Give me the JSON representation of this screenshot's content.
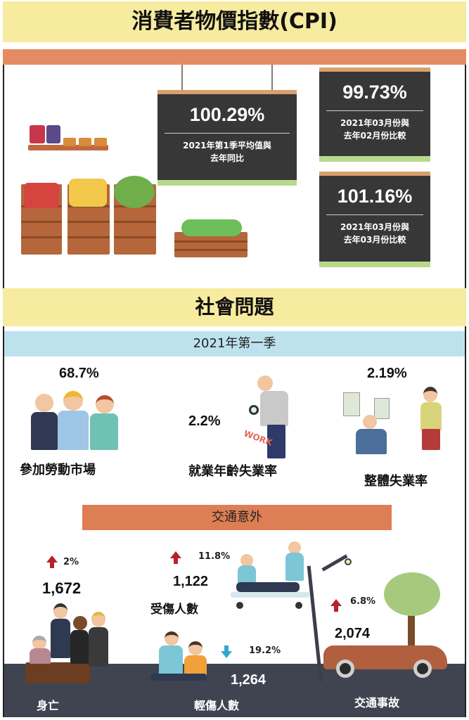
{
  "header": {
    "title": "消費者物價指數(CPI)"
  },
  "cpi_boards": [
    {
      "value": "100.29%",
      "caption": "2021年第1季平均值與\n去年同比"
    },
    {
      "value": "99.73%",
      "caption": "2021年03月份與\n去年02月份比較"
    },
    {
      "value": "101.16%",
      "caption": "2021年03月份與\n去年03月份比較"
    }
  ],
  "social": {
    "title": "社會問題",
    "period": "2021年第一季",
    "labour": {
      "value": "68.7%",
      "label": "參加勞動市場"
    },
    "youth_unemployment": {
      "value": "2.2%",
      "label": "就業年齡失業率",
      "sign_text": "WORK"
    },
    "overall_unemployment": {
      "value": "2.19%",
      "label": "整體失業率"
    }
  },
  "traffic": {
    "title": "交通意外",
    "deaths": {
      "value": "1,672",
      "change": "2%",
      "direction": "up",
      "label": "身亡"
    },
    "injured": {
      "value": "1,122",
      "change": "11.8%",
      "direction": "up",
      "label": "受傷人數"
    },
    "minor_injured": {
      "value": "1,264",
      "change": "19.2%",
      "direction": "down",
      "label": "輕傷人數"
    },
    "accidents": {
      "value": "2,074",
      "change": "6.8%",
      "direction": "up",
      "label": "交通事故"
    }
  },
  "colors": {
    "title_band": "#f7eb9f",
    "stripe": "#e58b63",
    "board": "#373737",
    "board_accent": "#b8d98a",
    "period_band": "#bde2ee",
    "traffic_band": "#de7e55",
    "arrow_up": "#b5222a",
    "arrow_down": "#35a7c9"
  }
}
